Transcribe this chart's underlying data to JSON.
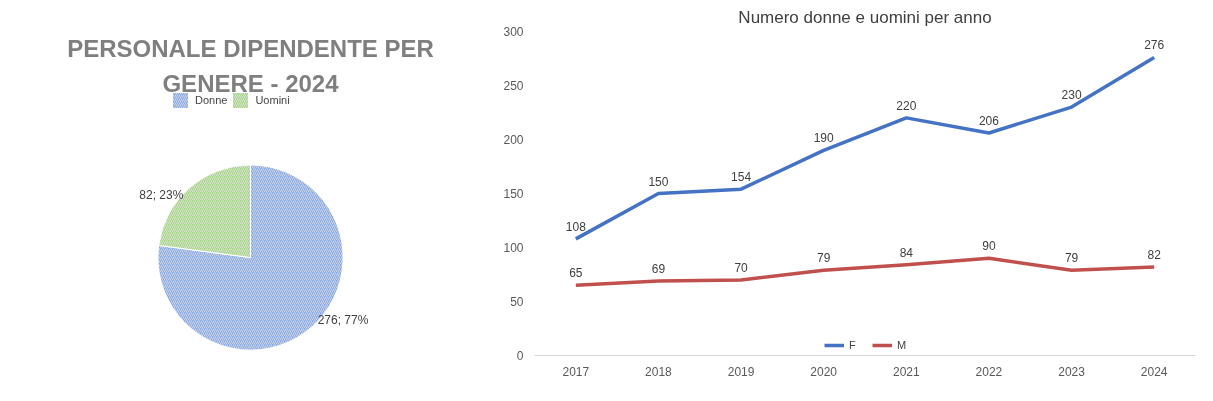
{
  "chart_data": [
    {
      "type": "pie",
      "title": "PERSONALE DIPENDENTE PER GENERE - 2024",
      "categories": [
        "Donne",
        "Uomini"
      ],
      "values": [
        276,
        82
      ],
      "colors": [
        "#8faadc",
        "#a9d18e"
      ],
      "value_labels": [
        "276; 77%",
        "82; 23%"
      ],
      "legend": "top"
    },
    {
      "type": "line",
      "title": "Numero donne e uomini per anno",
      "categories": [
        "2017",
        "2018",
        "2019",
        "2020",
        "2021",
        "2022",
        "2023",
        "2024"
      ],
      "series": [
        {
          "name": "F",
          "color": "#4472c4",
          "values": [
            108,
            150,
            154,
            190,
            220,
            206,
            230,
            276
          ]
        },
        {
          "name": "M",
          "color": "#c0504d",
          "values": [
            65,
            69,
            70,
            79,
            84,
            90,
            79,
            82
          ]
        }
      ],
      "ylim": [
        0,
        300
      ],
      "yticks": [
        0,
        50,
        100,
        150,
        200,
        250,
        300
      ],
      "data_labels": true,
      "legend": "bottom",
      "grid": false,
      "marker": "none"
    }
  ]
}
